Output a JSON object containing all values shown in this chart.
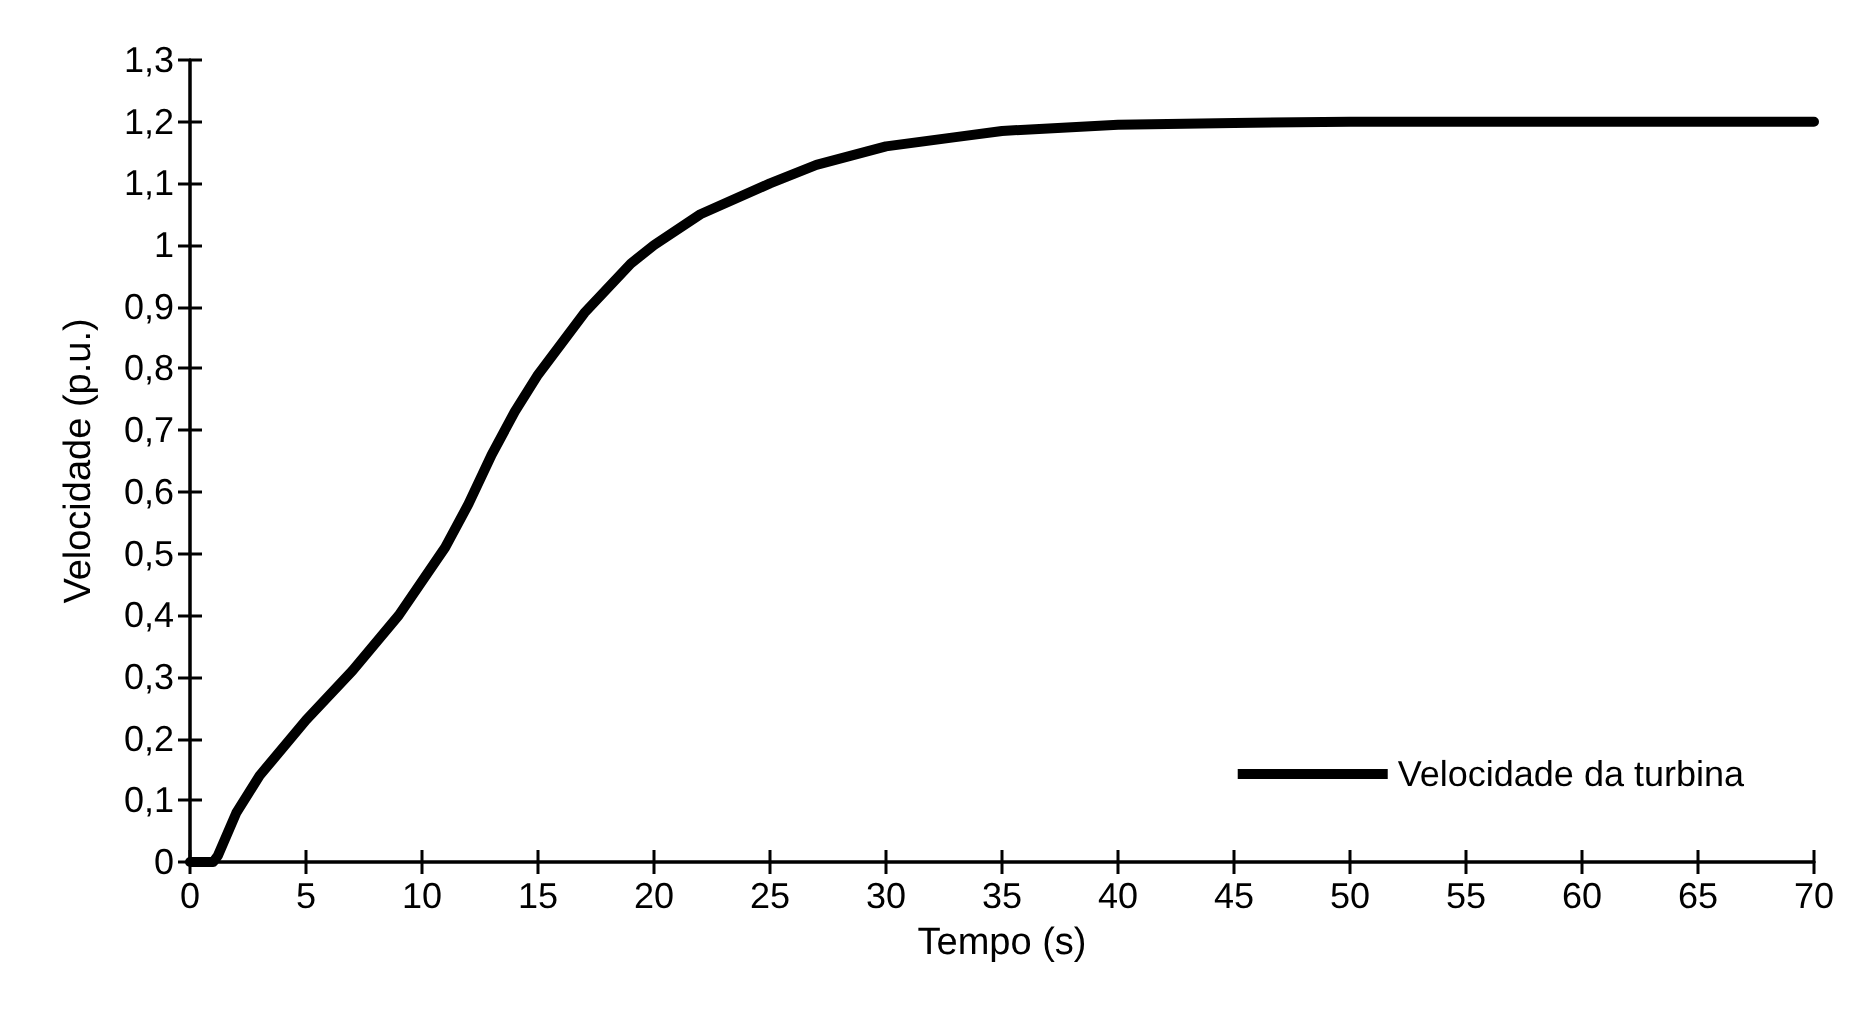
{
  "chart_data": {
    "type": "line",
    "xlabel": "Tempo (s)",
    "ylabel": "Velocidade (p.u.)",
    "x": [
      0,
      1,
      1.2,
      2,
      3,
      5,
      7,
      9,
      11,
      12,
      13,
      14,
      15,
      17,
      19,
      20,
      22,
      25,
      27,
      30,
      33,
      35,
      40,
      45,
      50,
      60,
      70
    ],
    "series": [
      {
        "name": "Velocidade da turbina",
        "color": "#000000",
        "values": [
          0,
          0,
          0.01,
          0.08,
          0.14,
          0.23,
          0.31,
          0.4,
          0.51,
          0.58,
          0.66,
          0.73,
          0.79,
          0.89,
          0.97,
          1.0,
          1.05,
          1.1,
          1.13,
          1.16,
          1.175,
          1.185,
          1.195,
          1.198,
          1.2,
          1.2,
          1.2
        ]
      }
    ],
    "xlim": [
      0,
      70
    ],
    "xticks": [
      0,
      5,
      10,
      15,
      20,
      25,
      30,
      35,
      40,
      45,
      50,
      55,
      60,
      65,
      70
    ],
    "ylim": [
      0,
      1.3
    ],
    "yticks": [
      0,
      {
        "value": 0.1,
        "label": "0,1"
      },
      {
        "value": 0.2,
        "label": "0,2"
      },
      {
        "value": 0.3,
        "label": "0,3"
      },
      {
        "value": 0.4,
        "label": "0,4"
      },
      {
        "value": 0.5,
        "label": "0,5"
      },
      {
        "value": 0.6,
        "label": "0,6"
      },
      {
        "value": 0.7,
        "label": "0,7"
      },
      {
        "value": 0.8,
        "label": "0,8"
      },
      {
        "value": 0.9,
        "label": "0,9"
      },
      1,
      {
        "value": 1.1,
        "label": "1,1"
      },
      {
        "value": 1.2,
        "label": "1,2"
      },
      {
        "value": 1.3,
        "label": "1,3"
      }
    ],
    "grid": false,
    "legend": "bottom right",
    "marker": "none",
    "line_style": "solid"
  }
}
